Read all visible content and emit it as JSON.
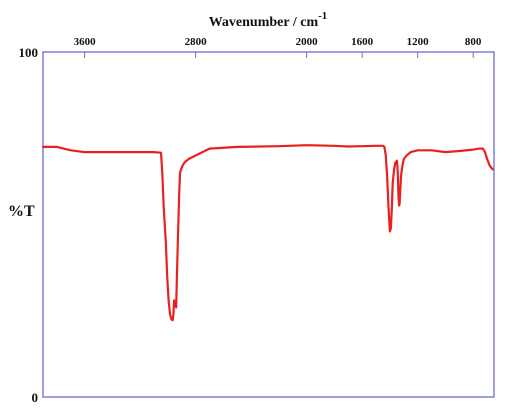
{
  "chart_data": {
    "type": "line",
    "xlabel": "Wavenumber / cm",
    "xlabel_sup": "-1",
    "ylabel": "%T",
    "xlim": [
      3900,
      650
    ],
    "ylim": [
      0,
      100
    ],
    "x_ticks": [
      3600,
      2800,
      2000,
      1600,
      1200,
      800
    ],
    "y_ticks": [
      0,
      100
    ],
    "grid": false,
    "legend": "none",
    "series": [
      {
        "color": "#e8211f",
        "x": [
          3900,
          3800,
          3700,
          3600,
          3400,
          3200,
          3100,
          3050,
          3040,
          3030,
          3015,
          3005,
          2995,
          2985,
          2975,
          2965,
          2960,
          2955,
          2950,
          2940,
          2935,
          2925,
          2918,
          2912,
          2905,
          2895,
          2880,
          2850,
          2800,
          2700,
          2500,
          2200,
          2000,
          1800,
          1700,
          1600,
          1500,
          1450,
          1440,
          1430,
          1420,
          1410,
          1400,
          1393,
          1386,
          1380,
          1370,
          1365,
          1360,
          1350,
          1346,
          1342,
          1338,
          1334,
          1330,
          1325,
          1320,
          1310,
          1300,
          1280,
          1250,
          1200,
          1100,
          1000,
          900,
          800,
          760,
          730,
          715,
          700,
          680,
          660
        ],
        "y": [
          72.5,
          72.5,
          71.5,
          71.0,
          71.0,
          71.0,
          71.0,
          70.8,
          65,
          55,
          45,
          35,
          28,
          24,
          22.5,
          22.3,
          24,
          28,
          27,
          26,
          35,
          50,
          60,
          65,
          66,
          67,
          68,
          69,
          70,
          72,
          72.5,
          72.7,
          73,
          72.8,
          72.6,
          72.7,
          72.8,
          72.8,
          72.5,
          70,
          64,
          55,
          48,
          49,
          55,
          62,
          66,
          67,
          68,
          68.5,
          67,
          63,
          58,
          55.5,
          56,
          60,
          64,
          67,
          69,
          70,
          71,
          71.5,
          71.5,
          71,
          71.3,
          71.7,
          72,
          72,
          71,
          69,
          67,
          66
        ]
      }
    ]
  }
}
